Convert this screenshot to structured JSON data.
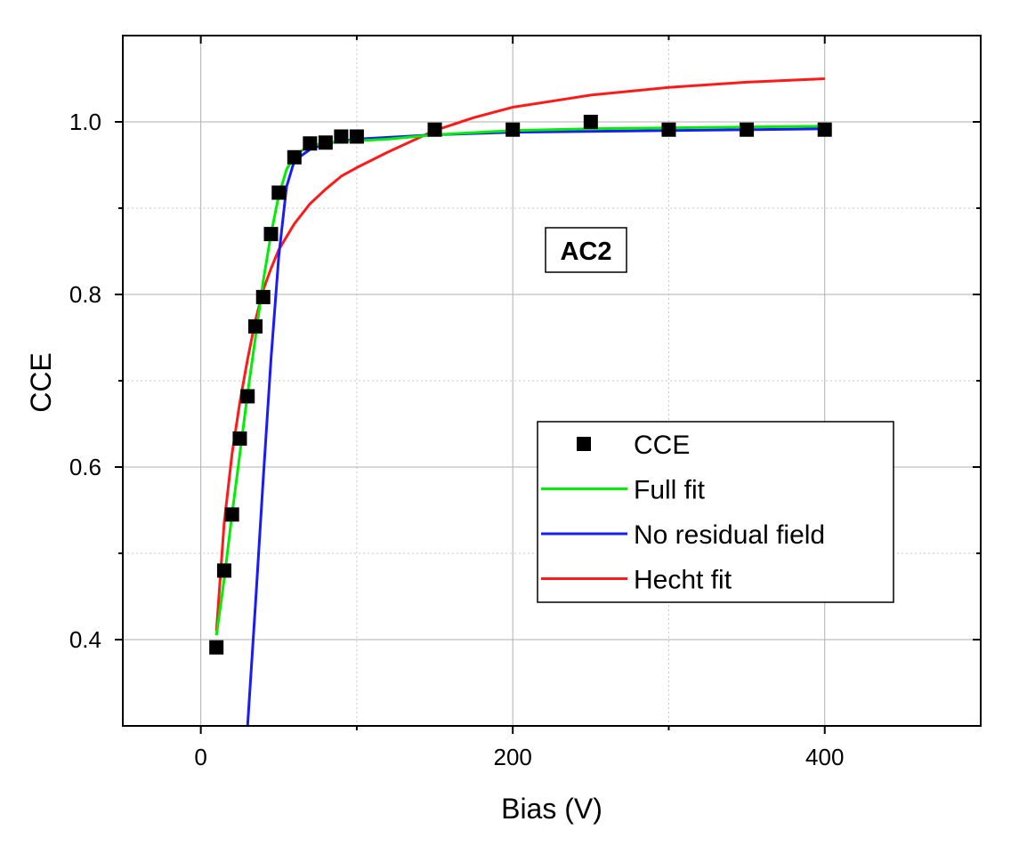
{
  "chart_data": {
    "type": "scatter",
    "title": "",
    "xlabel": "Bias (V)",
    "ylabel": "CCE",
    "xlim": [
      -50,
      500
    ],
    "ylim": [
      0.3,
      1.1
    ],
    "x_ticks": [
      0,
      200,
      400
    ],
    "x_tick_labels": [
      "0",
      "200",
      "400"
    ],
    "y_ticks": [
      0.4,
      0.6,
      0.8,
      1.0
    ],
    "y_tick_labels": [
      "0.4",
      "0.6",
      "0.8",
      "1.0"
    ],
    "grid": true,
    "annotation": "AC2",
    "legend_position": "center-right",
    "series": [
      {
        "name": "CCE",
        "kind": "marker",
        "color": "#000000",
        "x": [
          10,
          15,
          20,
          25,
          30,
          35,
          40,
          45,
          50,
          60,
          70,
          80,
          90,
          100,
          150,
          200,
          250,
          300,
          350,
          400
        ],
        "y": [
          0.391,
          0.48,
          0.545,
          0.633,
          0.682,
          0.763,
          0.797,
          0.87,
          0.918,
          0.959,
          0.975,
          0.976,
          0.983,
          0.983,
          0.991,
          0.991,
          1.0,
          0.991,
          0.991,
          0.991
        ]
      },
      {
        "name": "Full fit",
        "kind": "line",
        "color": "#00ee00",
        "x": [
          10,
          15,
          20,
          25,
          30,
          35,
          40,
          45,
          50,
          55,
          60,
          65,
          70,
          80,
          90,
          100,
          120,
          150,
          200,
          250,
          300,
          350,
          400
        ],
        "y": [
          0.405,
          0.47,
          0.545,
          0.615,
          0.685,
          0.75,
          0.815,
          0.87,
          0.915,
          0.945,
          0.96,
          0.967,
          0.972,
          0.976,
          0.977,
          0.978,
          0.98,
          0.985,
          0.99,
          0.992,
          0.993,
          0.994,
          0.995
        ]
      },
      {
        "name": "No residual field",
        "kind": "line",
        "color": "#1a1aff",
        "x": [
          30,
          35,
          40,
          45,
          50,
          55,
          60,
          70,
          80,
          100,
          150,
          200,
          300,
          400
        ],
        "y": [
          0.3,
          0.44,
          0.585,
          0.725,
          0.845,
          0.925,
          0.955,
          0.968,
          0.975,
          0.98,
          0.985,
          0.988,
          0.99,
          0.992
        ]
      },
      {
        "name": "Hecht fit",
        "kind": "line",
        "color": "#ff1a1a",
        "x": [
          10,
          15,
          20,
          25,
          30,
          35,
          40,
          45,
          50,
          60,
          70,
          80,
          90,
          100,
          120,
          150,
          175,
          200,
          250,
          300,
          350,
          400
        ],
        "y": [
          0.41,
          0.535,
          0.615,
          0.675,
          0.725,
          0.77,
          0.805,
          0.83,
          0.852,
          0.882,
          0.905,
          0.922,
          0.937,
          0.947,
          0.965,
          0.99,
          1.005,
          1.017,
          1.031,
          1.04,
          1.046,
          1.05
        ]
      }
    ]
  }
}
